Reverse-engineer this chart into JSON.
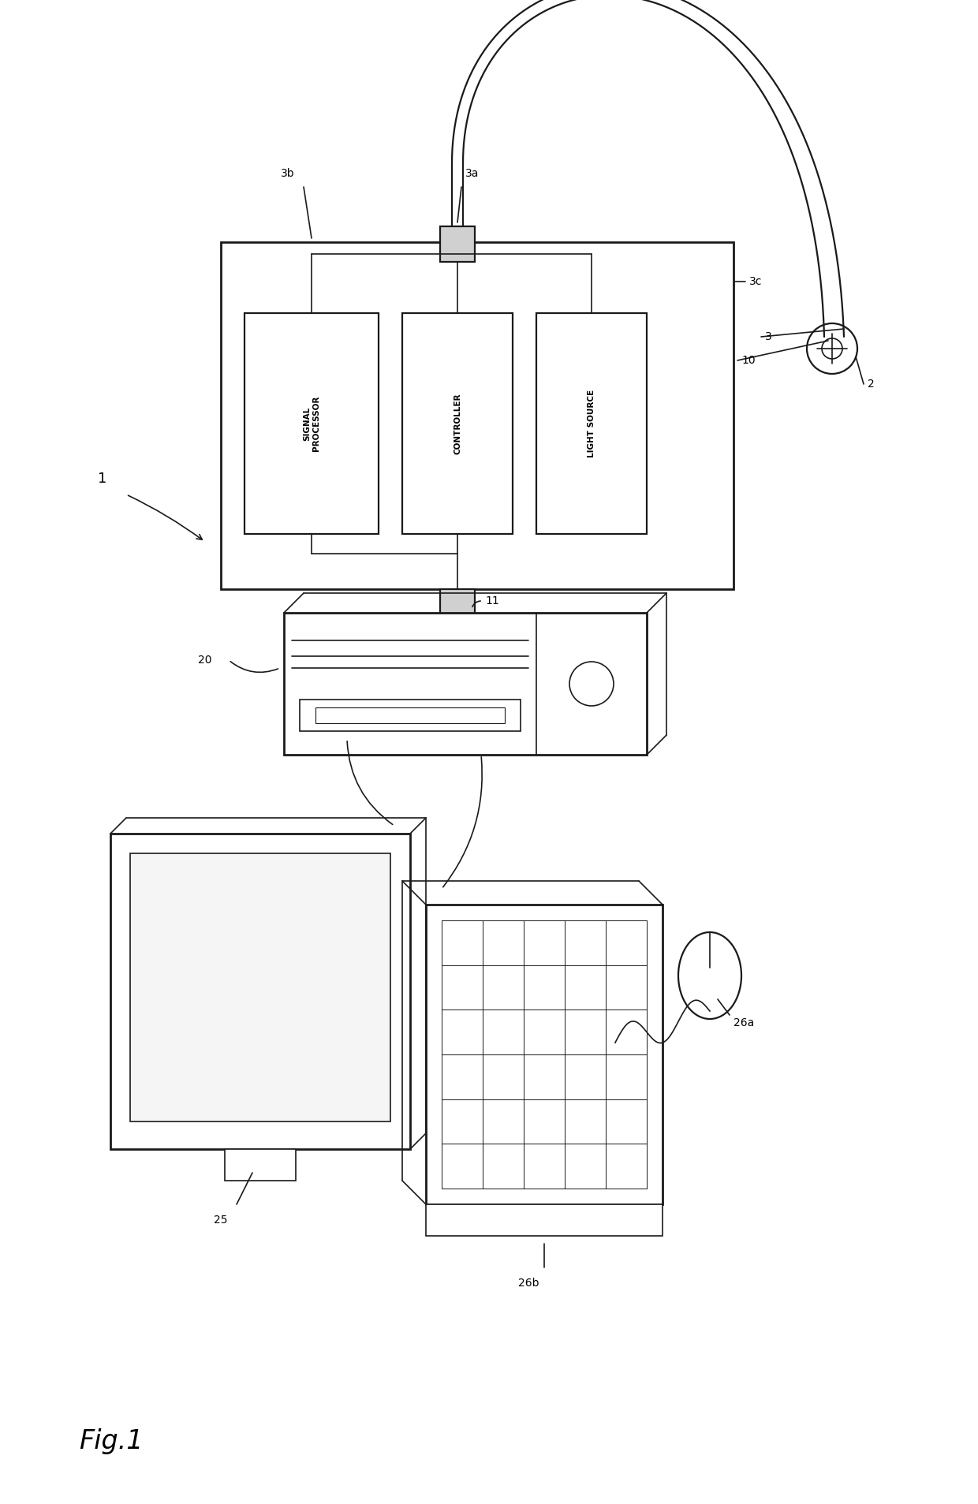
{
  "bg_color": "#ffffff",
  "line_color": "#1a1a1a",
  "fig_label": "Fig.1",
  "labels": {
    "1": "1",
    "2": "2",
    "3": "3",
    "3a": "3a",
    "3b": "3b",
    "3c": "3c",
    "10": "10",
    "11": "11",
    "20": "20",
    "25": "25",
    "26a": "26a",
    "26b": "26b",
    "signal_processor": "SIGNAL\nPROCESSOR",
    "controller": "CONTROLLER",
    "light_source": "LIGHT SOURCE"
  }
}
